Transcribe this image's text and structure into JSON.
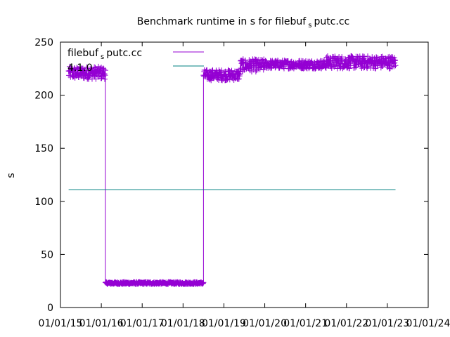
{
  "chart_data": {
    "type": "line",
    "title_main": "Benchmark runtime in s for filebuf",
    "title_sub": "s",
    "title_tail": "putc.cc",
    "ylabel": "s",
    "xlabel": "",
    "ylim": [
      0,
      250
    ],
    "yticks": [
      0,
      50,
      100,
      150,
      200,
      250
    ],
    "xlim": [
      2015.0,
      2024.0
    ],
    "xticks": [
      {
        "value": 2015.0,
        "label": "01/01/15"
      },
      {
        "value": 2016.0,
        "label": "01/01/16"
      },
      {
        "value": 2017.0,
        "label": "01/01/17"
      },
      {
        "value": 2018.0,
        "label": "01/01/18"
      },
      {
        "value": 2019.0,
        "label": "01/01/19"
      },
      {
        "value": 2020.0,
        "label": "01/01/20"
      },
      {
        "value": 2021.0,
        "label": "01/01/21"
      },
      {
        "value": 2022.0,
        "label": "01/01/22"
      },
      {
        "value": 2023.0,
        "label": "01/01/23"
      },
      {
        "value": 2024.0,
        "label": "01/01/24"
      }
    ],
    "grid": false,
    "legend_position": "top-left",
    "series": [
      {
        "name_main": "filebuf",
        "name_sub": "s",
        "name_tail": "putc.cc",
        "color": "#9400d3",
        "marker": "plus",
        "segments": [
          {
            "x_start": 2015.2,
            "x_end": 2016.1,
            "y_mean": 221,
            "y_jitter": 6
          },
          {
            "x_start": 2016.1,
            "x_end": 2018.5,
            "y_mean": 23,
            "y_jitter": 1
          },
          {
            "x_start": 2018.5,
            "x_end": 2019.4,
            "y_mean": 219,
            "y_jitter": 5
          },
          {
            "x_start": 2019.4,
            "x_end": 2020.0,
            "y_mean": 228,
            "y_jitter": 6
          },
          {
            "x_start": 2020.0,
            "x_end": 2021.5,
            "y_mean": 229,
            "y_jitter": 4
          },
          {
            "x_start": 2021.5,
            "x_end": 2023.2,
            "y_mean": 231,
            "y_jitter": 6
          }
        ]
      },
      {
        "name_main": "4.1.0",
        "color": "#008080",
        "marker": "none",
        "points": [
          [
            2015.2,
            111
          ],
          [
            2023.2,
            111
          ]
        ]
      }
    ]
  }
}
